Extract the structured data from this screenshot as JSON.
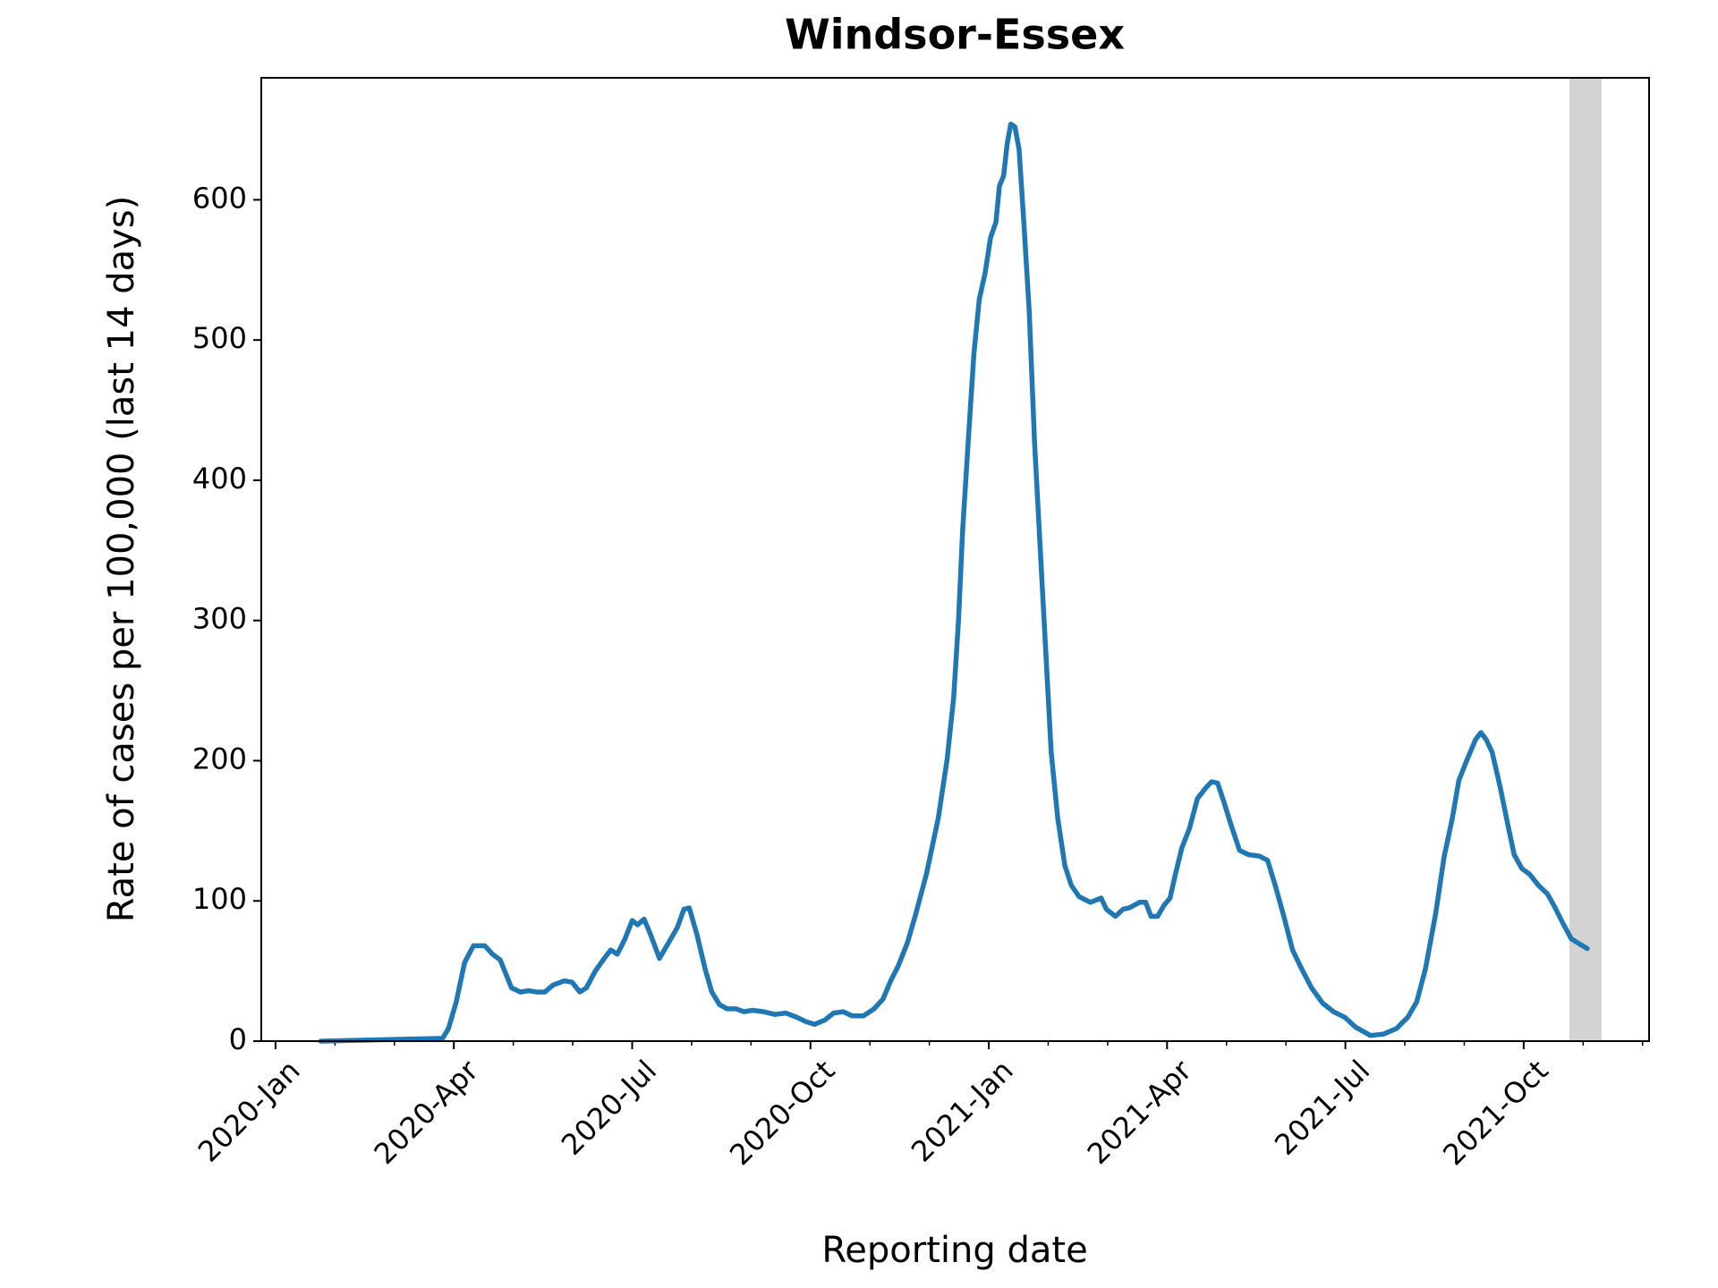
{
  "chart_data": {
    "type": "line",
    "title": "Windsor-Essex",
    "x_label": "Reporting date",
    "y_label": "Rate of cases per 100,000 (last 14 days)",
    "xlim": [
      -0.24,
      23.11
    ],
    "ylim": [
      0,
      687
    ],
    "xticks": [
      {
        "value": 0,
        "label": "2020-Jan"
      },
      {
        "value": 3,
        "label": "2020-Apr"
      },
      {
        "value": 6,
        "label": "2020-Jul"
      },
      {
        "value": 9,
        "label": "2020-Oct"
      },
      {
        "value": 12,
        "label": "2021-Jan"
      },
      {
        "value": 15,
        "label": "2021-Apr"
      },
      {
        "value": 18,
        "label": "2021-Jul"
      },
      {
        "value": 21,
        "label": "2021-Oct"
      }
    ],
    "xminorticks": [
      1,
      2,
      4,
      5,
      7,
      8,
      10,
      11,
      13,
      14,
      16,
      17,
      19,
      20,
      22,
      23
    ],
    "yticks": [
      0,
      100,
      200,
      300,
      400,
      500,
      600
    ],
    "highlight_xrange": [
      21.77,
      22.31
    ],
    "highlight_color": "#d3d3d3",
    "series": [
      {
        "color": "#1f77b4",
        "x": [
          0.76,
          2.81,
          2.91,
          3.04,
          3.18,
          3.33,
          3.52,
          3.65,
          3.78,
          3.97,
          4.12,
          4.26,
          4.39,
          4.53,
          4.67,
          4.86,
          4.99,
          5.12,
          5.23,
          5.38,
          5.53,
          5.64,
          5.75,
          5.88,
          6.0,
          6.09,
          6.2,
          6.31,
          6.46,
          6.61,
          6.76,
          6.87,
          6.96,
          7.09,
          7.23,
          7.34,
          7.47,
          7.6,
          7.75,
          7.88,
          8.03,
          8.21,
          8.4,
          8.58,
          8.77,
          8.92,
          9.07,
          9.24,
          9.39,
          9.55,
          9.7,
          9.89,
          10.07,
          10.22,
          10.35,
          10.48,
          10.63,
          10.76,
          10.95,
          11.15,
          11.3,
          11.41,
          11.49,
          11.56,
          11.66,
          11.75,
          11.84,
          11.94,
          12.03,
          12.12,
          12.18,
          12.25,
          12.31,
          12.37,
          12.44,
          12.51,
          12.59,
          12.68,
          12.77,
          12.87,
          12.96,
          13.05,
          13.16,
          13.28,
          13.39,
          13.52,
          13.71,
          13.89,
          13.98,
          14.13,
          14.26,
          14.36,
          14.54,
          14.64,
          14.73,
          14.84,
          14.95,
          15.05,
          15.14,
          15.25,
          15.38,
          15.51,
          15.66,
          15.75,
          15.85,
          15.96,
          16.07,
          16.22,
          16.37,
          16.55,
          16.69,
          16.82,
          16.97,
          17.11,
          17.26,
          17.43,
          17.62,
          17.8,
          17.99,
          18.17,
          18.42,
          18.64,
          18.86,
          19.05,
          19.2,
          19.35,
          19.52,
          19.66,
          19.8,
          19.91,
          20.04,
          20.19,
          20.28,
          20.37,
          20.47,
          20.6,
          20.73,
          20.84,
          20.97,
          21.1,
          21.25,
          21.4,
          21.53,
          21.66,
          21.8,
          21.95,
          22.07
        ],
        "values": [
          0,
          2,
          9,
          28,
          56,
          68,
          68,
          62,
          58,
          38,
          35,
          36,
          35,
          35,
          40,
          43,
          42,
          35,
          38,
          50,
          59,
          65,
          62,
          73,
          86,
          83,
          87,
          76,
          59,
          70,
          81,
          94,
          95,
          76,
          51,
          35,
          26,
          23,
          23,
          21,
          22,
          21,
          19,
          20,
          17,
          14,
          12,
          15,
          20,
          21,
          18,
          18,
          23,
          30,
          43,
          54,
          70,
          89,
          119,
          159,
          201,
          245,
          300,
          364,
          431,
          490,
          529,
          548,
          573,
          584,
          610,
          617,
          640,
          654,
          652,
          636,
          584,
          521,
          427,
          348,
          277,
          206,
          159,
          125,
          111,
          103,
          99,
          102,
          94,
          89,
          94,
          95,
          99,
          99,
          89,
          89,
          97,
          102,
          119,
          138,
          152,
          173,
          181,
          185,
          184,
          170,
          155,
          136,
          133,
          132,
          129,
          111,
          88,
          65,
          52,
          38,
          27,
          21,
          17,
          10,
          4,
          5,
          9,
          17,
          28,
          52,
          91,
          131,
          159,
          186,
          200,
          215,
          220,
          215,
          206,
          182,
          155,
          133,
          123,
          119,
          111,
          105,
          95,
          84,
          73,
          69,
          66
        ]
      }
    ]
  }
}
